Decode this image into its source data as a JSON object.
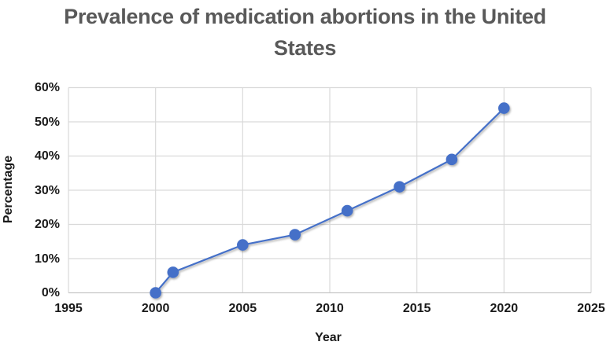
{
  "title": "Prevalence of medication abortions in the United States",
  "chart_data": {
    "type": "line",
    "title": "Prevalence of medication abortions in the United States",
    "xlabel": "Year",
    "ylabel": "Percentage",
    "x": [
      2000,
      2001,
      2005,
      2008,
      2011,
      2014,
      2017,
      2020
    ],
    "values": [
      0,
      6,
      14,
      17,
      24,
      31,
      39,
      54
    ],
    "xlim": [
      1995,
      2025
    ],
    "ylim": [
      0,
      60
    ],
    "x_ticks": [
      1995,
      2000,
      2005,
      2010,
      2015,
      2020,
      2025
    ],
    "y_tick_values": [
      0,
      10,
      20,
      30,
      40,
      50,
      60
    ],
    "y_tick_labels": [
      "0%",
      "10%",
      "20%",
      "30%",
      "40%",
      "50%",
      "60%"
    ],
    "grid": true,
    "legend": false,
    "marker": "circle",
    "colors": {
      "line": "#4470C8",
      "marker": "#4470C8",
      "gridline": "#D9D9D9",
      "axis_line": "#C6C6C6",
      "title_text": "#595959",
      "axis_text": "#1A1A1A",
      "background": "#FFFFFF"
    }
  }
}
